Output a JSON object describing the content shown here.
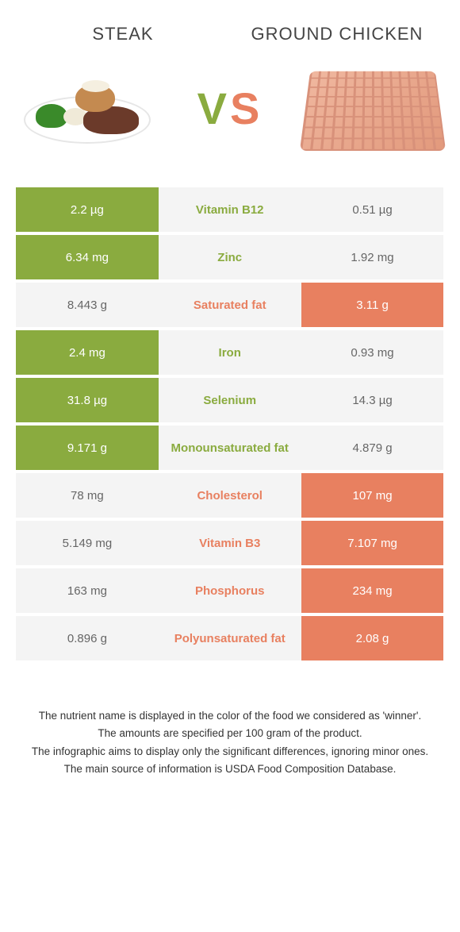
{
  "header": {
    "left_title": "Steak",
    "right_title": "Ground chicken",
    "vs_text": "VS"
  },
  "colors": {
    "green": "#8aab3f",
    "orange": "#e88060",
    "light_bg": "#f4f4f4",
    "text": "#333333"
  },
  "rows": [
    {
      "left": "2.2 µg",
      "nutrient": "Vitamin B12",
      "right": "0.51 µg",
      "winner": "left"
    },
    {
      "left": "6.34 mg",
      "nutrient": "Zinc",
      "right": "1.92 mg",
      "winner": "left"
    },
    {
      "left": "8.443 g",
      "nutrient": "Saturated fat",
      "right": "3.11 g",
      "winner": "right"
    },
    {
      "left": "2.4 mg",
      "nutrient": "Iron",
      "right": "0.93 mg",
      "winner": "left"
    },
    {
      "left": "31.8 µg",
      "nutrient": "Selenium",
      "right": "14.3 µg",
      "winner": "left"
    },
    {
      "left": "9.171 g",
      "nutrient": "Monounsaturated fat",
      "right": "4.879 g",
      "winner": "left"
    },
    {
      "left": "78 mg",
      "nutrient": "Cholesterol",
      "right": "107 mg",
      "winner": "right"
    },
    {
      "left": "5.149 mg",
      "nutrient": "Vitamin B3",
      "right": "7.107 mg",
      "winner": "right"
    },
    {
      "left": "163 mg",
      "nutrient": "Phosphorus",
      "right": "234 mg",
      "winner": "right"
    },
    {
      "left": "0.896 g",
      "nutrient": "Polyunsaturated fat",
      "right": "2.08 g",
      "winner": "right"
    }
  ],
  "notes": [
    "The nutrient name is displayed in the color of the food we considered as 'winner'.",
    "The amounts are specified per 100 gram of the product.",
    "The infographic aims to display only the significant differences, ignoring minor ones.",
    "The main source of information is USDA Food Composition Database."
  ]
}
